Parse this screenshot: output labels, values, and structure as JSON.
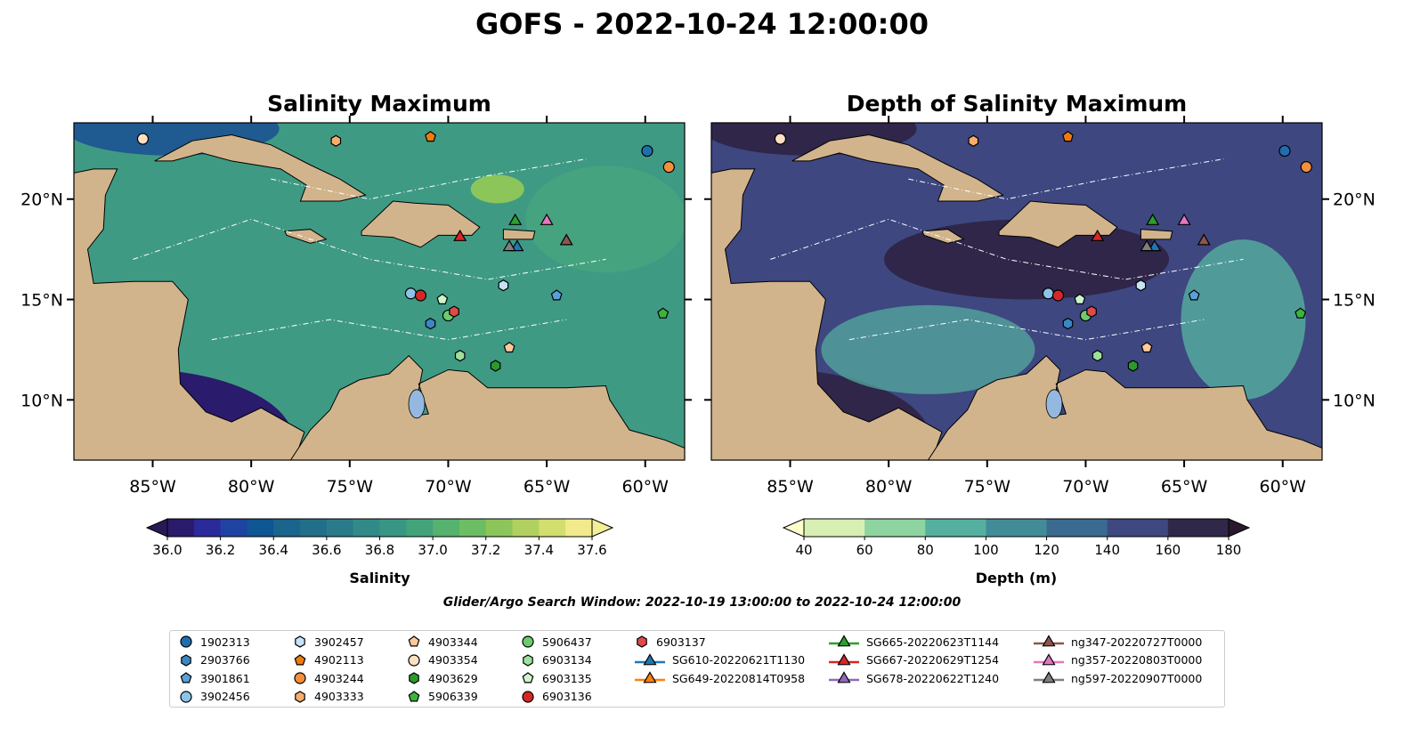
{
  "title": "GOFS - 2022-10-24 12:00:00",
  "panels": [
    {
      "title": "Salinity Maximum"
    },
    {
      "title": "Depth of Salinity Maximum"
    }
  ],
  "window_text": "Glider/Argo Search Window: 2022-10-19 13:00:00 to 2022-10-24 12:00:00",
  "chart_data": {
    "type": "map",
    "lon_range": [
      -89,
      -58
    ],
    "lat_range": [
      7,
      23.8
    ],
    "lon_ticks": [
      {
        "v": -85,
        "label": "85°W"
      },
      {
        "v": -80,
        "label": "80°W"
      },
      {
        "v": -75,
        "label": "75°W"
      },
      {
        "v": -70,
        "label": "70°W"
      },
      {
        "v": -65,
        "label": "65°W"
      },
      {
        "v": -60,
        "label": "60°W"
      }
    ],
    "lat_ticks": [
      {
        "v": 20,
        "label": "20°N"
      },
      {
        "v": 15,
        "label": "15°N"
      },
      {
        "v": 10,
        "label": "10°N"
      }
    ],
    "colorbars": [
      {
        "label": "Salinity",
        "ticks": [
          "36.0",
          "36.2",
          "36.4",
          "36.6",
          "36.8",
          "37.0",
          "37.2",
          "37.4",
          "37.6"
        ],
        "min": 36.0,
        "max": 37.6,
        "colors": [
          "#2a1a6c",
          "#2b2a9a",
          "#1f43a1",
          "#0f5694",
          "#1b648c",
          "#226f8a",
          "#2a7b8a",
          "#328a88",
          "#389784",
          "#43a47c",
          "#55b26f",
          "#6dbd63",
          "#8cc65a",
          "#b0d15f",
          "#d2df6f",
          "#f2eb8e"
        ],
        "under": "#2a1854",
        "over": "#f4ee95"
      },
      {
        "label": "Depth (m)",
        "ticks": [
          "40",
          "60",
          "80",
          "100",
          "120",
          "140",
          "160",
          "180"
        ],
        "min": 40,
        "max": 180,
        "colors": [
          "#d7efb2",
          "#8ed4a0",
          "#55b0a0",
          "#428c97",
          "#3a6a90",
          "#3e4780",
          "#302848"
        ],
        "under": "#fdfecc",
        "over": "#281a2c"
      }
    ],
    "platforms": [
      {
        "id": "1902313",
        "marker": "circle",
        "color": "#1f6fb0",
        "lon": -59.9,
        "lat": 22.4
      },
      {
        "id": "2903766",
        "marker": "hexagon",
        "color": "#3a87c4",
        "lon": -70.9,
        "lat": 13.8
      },
      {
        "id": "3901861",
        "marker": "pentagon",
        "color": "#5aa0d8",
        "lon": -64.5,
        "lat": 15.2
      },
      {
        "id": "3902456",
        "marker": "circle",
        "color": "#8cc3ea",
        "lon": -71.9,
        "lat": 15.3
      },
      {
        "id": "3902457",
        "marker": "hexagon",
        "color": "#c5e2f6",
        "lon": -67.2,
        "lat": 15.7
      },
      {
        "id": "4902113",
        "marker": "pentagon",
        "color": "#f07b0c",
        "lon": -70.9,
        "lat": 23.1
      },
      {
        "id": "4903244",
        "marker": "circle",
        "color": "#f58f3a",
        "lon": -58.8,
        "lat": 21.6
      },
      {
        "id": "4903333",
        "marker": "hexagon",
        "color": "#f9ad6a",
        "lon": -75.7,
        "lat": 22.9
      },
      {
        "id": "4903344",
        "marker": "pentagon",
        "color": "#fdc99a",
        "lon": -66.9,
        "lat": 12.6
      },
      {
        "id": "4903354",
        "marker": "circle",
        "color": "#fde0c2",
        "lon": -85.5,
        "lat": 23.0
      },
      {
        "id": "4903629",
        "marker": "hexagon",
        "color": "#2a9a2a",
        "lon": -67.6,
        "lat": 11.7
      },
      {
        "id": "5906339",
        "marker": "pentagon",
        "color": "#3cb43c",
        "lon": -59.1,
        "lat": 14.3
      },
      {
        "id": "5906437",
        "marker": "circle",
        "color": "#6ccc6c",
        "lon": -70.0,
        "lat": 14.2
      },
      {
        "id": "6903134",
        "marker": "hexagon",
        "color": "#9ee09e",
        "lon": -69.4,
        "lat": 12.2
      },
      {
        "id": "6903135",
        "marker": "pentagon",
        "color": "#cdf5cd",
        "lon": -70.3,
        "lat": 15.0
      },
      {
        "id": "6903136",
        "marker": "circle",
        "color": "#d62728",
        "lon": -71.4,
        "lat": 15.2
      },
      {
        "id": "6903137",
        "marker": "hexagon",
        "color": "#e04a4a",
        "lon": -69.7,
        "lat": 14.4
      },
      {
        "id": "SG610-20220621T1130",
        "marker": "triangle",
        "color": "#1f77b4",
        "lon": -66.5,
        "lat": 17.6
      },
      {
        "id": "SG649-20220814T0958",
        "marker": "triangle",
        "color": "#ff7f0e",
        "lon": null,
        "lat": null
      },
      {
        "id": "SG665-20220623T1144",
        "marker": "triangle",
        "color": "#2ca02c",
        "lon": -66.6,
        "lat": 18.9
      },
      {
        "id": "SG667-20220629T1254",
        "marker": "triangle",
        "color": "#d62728",
        "lon": -69.4,
        "lat": 18.1
      },
      {
        "id": "SG678-20220622T1240",
        "marker": "triangle",
        "color": "#9467bd",
        "lon": null,
        "lat": null
      },
      {
        "id": "ng347-20220727T0000",
        "marker": "triangle",
        "color": "#8c564b",
        "lon": -64.0,
        "lat": 17.9
      },
      {
        "id": "ng357-20220803T0000",
        "marker": "triangle",
        "color": "#e377c2",
        "lon": -65.0,
        "lat": 18.9
      },
      {
        "id": "ng597-20220907T0000",
        "marker": "triangle",
        "color": "#7f7f7f",
        "lon": -66.9,
        "lat": 17.6
      }
    ]
  }
}
